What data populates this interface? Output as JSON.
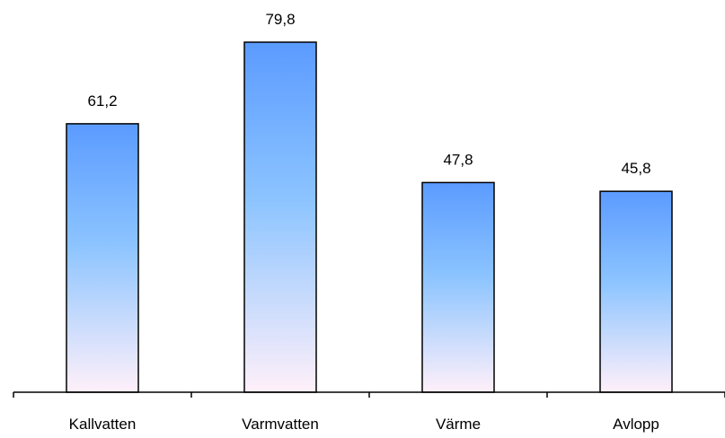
{
  "chart_data": {
    "type": "bar",
    "title": "",
    "xlabel": "",
    "ylabel": "",
    "categories": [
      "Kallvatten",
      "Varmvatten",
      "Värme",
      "Avlopp"
    ],
    "values": [
      61.2,
      79.8,
      47.8,
      45.8
    ],
    "value_labels": [
      "61,2",
      "79,8",
      "47,8",
      "45,8"
    ],
    "ylim": [
      0,
      85
    ],
    "grid": false,
    "legend": "none",
    "colors": {
      "bar_top": "#5b9bff",
      "bar_mid": "#8cc4ff",
      "bar_bottom": "#fff0fa",
      "bar_stroke": "#000000",
      "axis": "#000000"
    }
  }
}
